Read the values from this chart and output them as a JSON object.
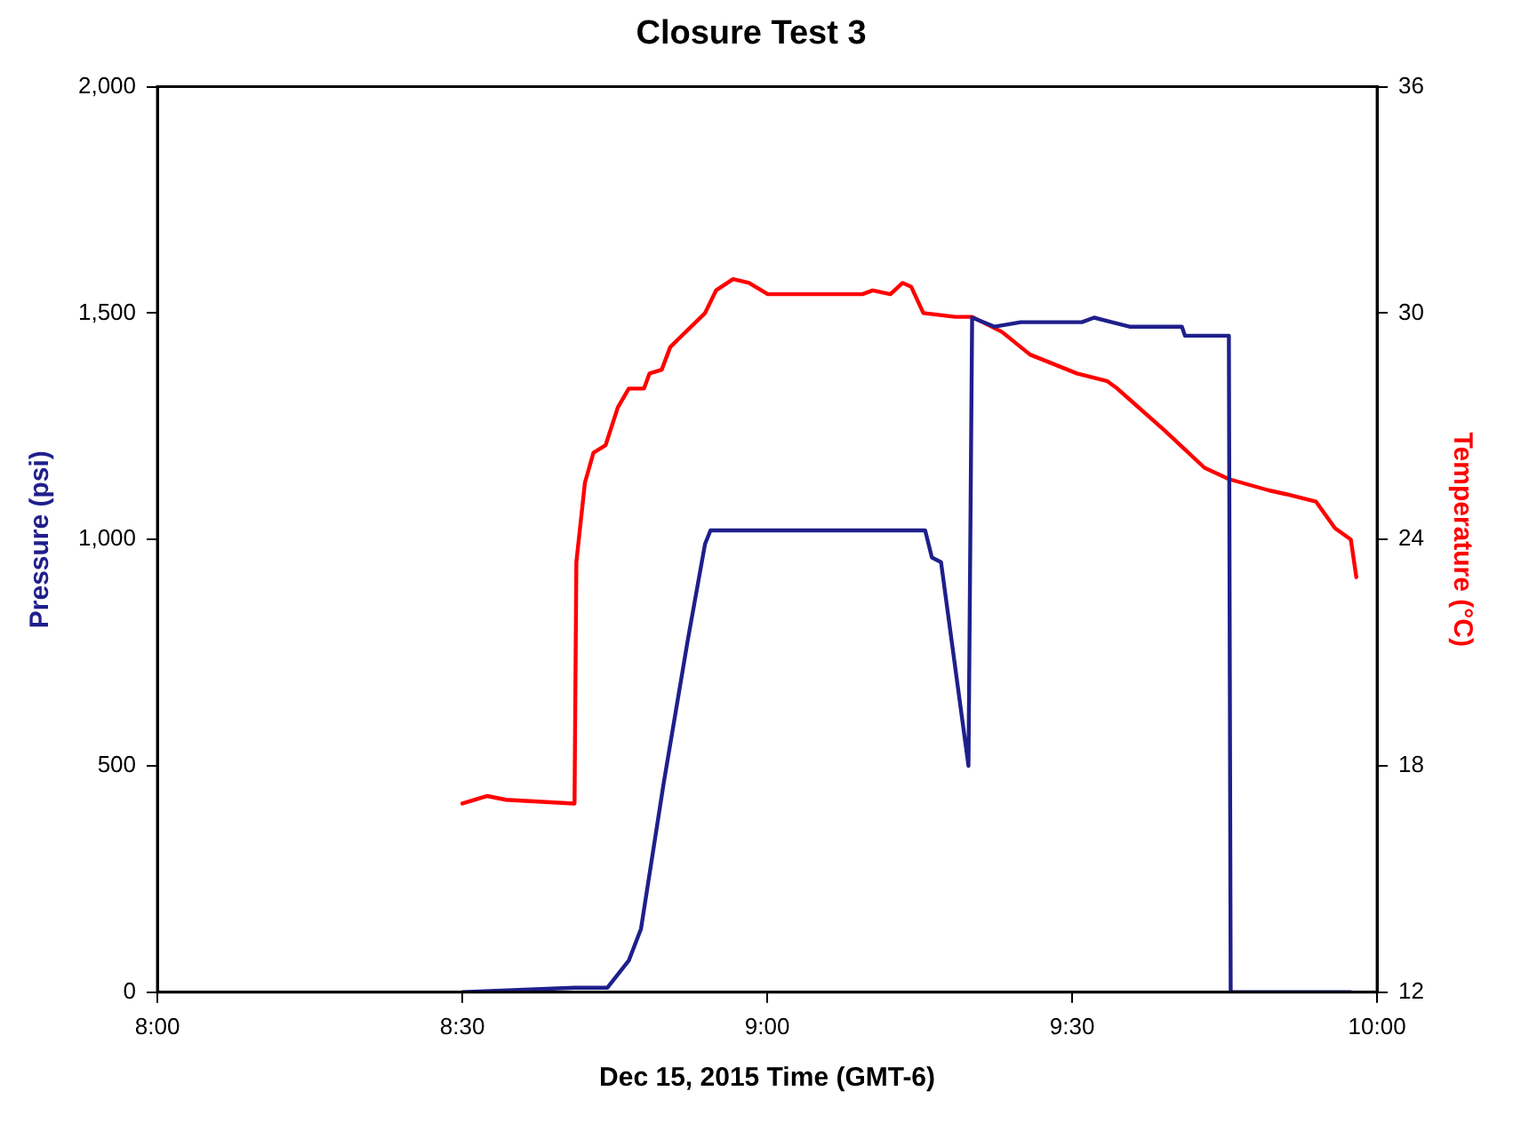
{
  "chart_data": {
    "type": "line",
    "title": "Closure Test 3",
    "xlabel": "Dec 15, 2015 Time (GMT-6)",
    "ylabel": "Pressure (psi)",
    "y2label": "Temperature (°C)",
    "xlim": [
      8,
      10
    ],
    "xticks": [
      {
        "value": 8,
        "label": "8:00"
      },
      {
        "value": 8.5,
        "label": "8:30"
      },
      {
        "value": 9,
        "label": "9:00"
      },
      {
        "value": 9.5,
        "label": "9:30"
      },
      {
        "value": 10,
        "label": "10:00"
      }
    ],
    "ylim": [
      0,
      2000
    ],
    "yticks": [
      {
        "value": 0,
        "label": "0"
      },
      {
        "value": 500,
        "label": "500"
      },
      {
        "value": 1000,
        "label": "1,000"
      },
      {
        "value": 1500,
        "label": "1,500"
      },
      {
        "value": 2000,
        "label": "2,000"
      }
    ],
    "y2lim": [
      12,
      36
    ],
    "y2ticks": [
      12,
      18,
      24,
      30,
      36
    ],
    "grid": false,
    "legend": false,
    "marker": "none",
    "line_style": "solid",
    "series": [
      {
        "color": "#1f1f8c",
        "x": [
          8.5,
          8.684,
          8.738,
          8.773,
          8.793,
          8.83,
          8.87,
          8.898,
          8.907,
          9.259,
          9.27,
          9.285,
          9.33,
          9.336,
          9.373,
          9.416,
          9.516,
          9.536,
          9.565,
          9.594,
          9.68,
          9.685,
          9.757,
          9.76,
          9.957
        ],
        "values": [
          0,
          10,
          10,
          70,
          140,
          460,
          780,
          990,
          1020,
          1020,
          960,
          950,
          500,
          1490,
          1470,
          1480,
          1480,
          1490,
          1480,
          1470,
          1470,
          1450,
          1450,
          0,
          0
        ]
      },
      {
        "color": "#ff0000",
        "axis": "y2",
        "x": [
          8.5,
          8.541,
          8.572,
          8.684,
          8.687,
          8.701,
          8.715,
          8.735,
          8.755,
          8.773,
          8.798,
          8.807,
          8.827,
          8.841,
          8.898,
          8.916,
          8.944,
          8.97,
          9.001,
          9.156,
          9.173,
          9.202,
          9.222,
          9.236,
          9.256,
          9.308,
          9.336,
          9.385,
          9.431,
          9.508,
          9.557,
          9.574,
          9.651,
          9.717,
          9.757,
          9.823,
          9.851,
          9.9,
          9.931,
          9.957,
          9.966
        ],
        "values": [
          17.0,
          17.2,
          17.1,
          17.0,
          23.4,
          25.5,
          26.3,
          26.5,
          27.5,
          28.0,
          28.0,
          28.4,
          28.5,
          29.1,
          30.0,
          30.6,
          30.9,
          30.8,
          30.5,
          30.5,
          30.6,
          30.5,
          30.8,
          30.7,
          30.0,
          29.9,
          29.9,
          29.5,
          28.9,
          28.4,
          28.2,
          28.0,
          26.9,
          25.9,
          25.6,
          25.3,
          25.2,
          25.0,
          24.3,
          24.0,
          23.0
        ]
      }
    ]
  }
}
